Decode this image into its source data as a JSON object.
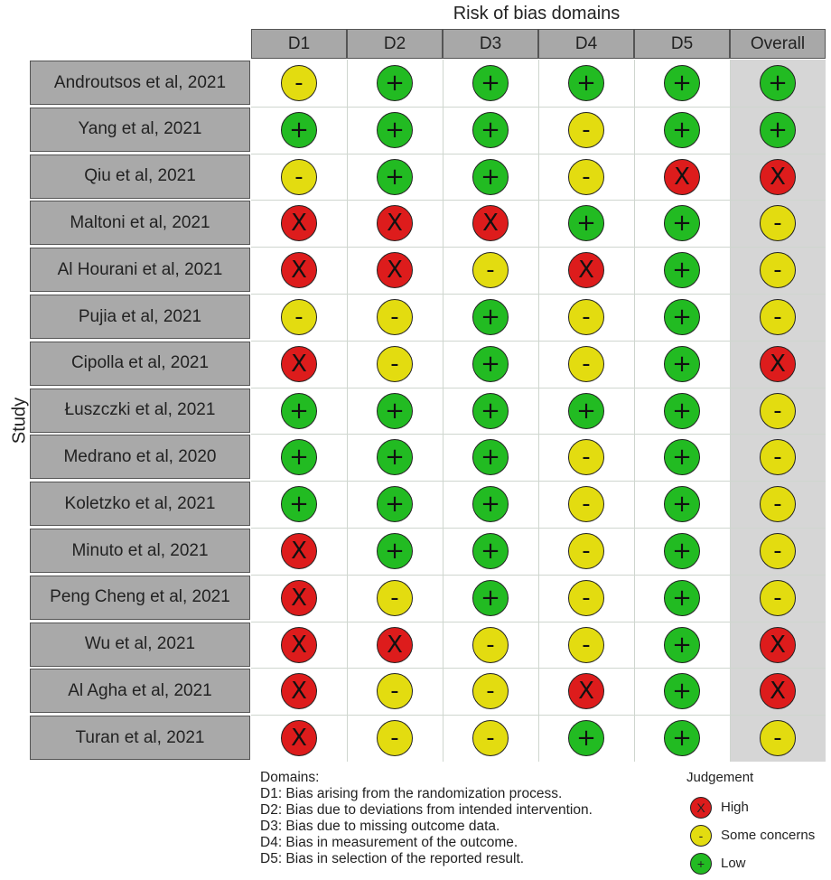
{
  "title": "Risk of bias domains",
  "y_axis_label": "Study",
  "columns": [
    "D1",
    "D2",
    "D3",
    "D4",
    "D5",
    "Overall"
  ],
  "symbols": {
    "low": "+",
    "some": "-",
    "high": "X"
  },
  "colors": {
    "low": "#22bb22",
    "some": "#e3dc10",
    "high": "#dd1c1c",
    "header": "#a8a8a8",
    "overall_bg": "#d6d6d6"
  },
  "studies": [
    {
      "name": "Androutsos et al, 2021",
      "ratings": [
        "some",
        "low",
        "low",
        "low",
        "low",
        "low"
      ]
    },
    {
      "name": "Yang et al, 2021",
      "ratings": [
        "low",
        "low",
        "low",
        "some",
        "low",
        "low"
      ]
    },
    {
      "name": "Qiu et al, 2021",
      "ratings": [
        "some",
        "low",
        "low",
        "some",
        "high",
        "high"
      ]
    },
    {
      "name": "Maltoni et al, 2021",
      "ratings": [
        "high",
        "high",
        "high",
        "low",
        "low",
        "some"
      ]
    },
    {
      "name": "Al Hourani et al, 2021",
      "ratings": [
        "high",
        "high",
        "some",
        "high",
        "low",
        "some"
      ]
    },
    {
      "name": "Pujia et al, 2021",
      "ratings": [
        "some",
        "some",
        "low",
        "some",
        "low",
        "some"
      ]
    },
    {
      "name": "Cipolla et al, 2021",
      "ratings": [
        "high",
        "some",
        "low",
        "some",
        "low",
        "high"
      ]
    },
    {
      "name": "Łuszczki et al, 2021",
      "ratings": [
        "low",
        "low",
        "low",
        "low",
        "low",
        "some"
      ]
    },
    {
      "name": "Medrano et al, 2020",
      "ratings": [
        "low",
        "low",
        "low",
        "some",
        "low",
        "some"
      ]
    },
    {
      "name": "Koletzko et al, 2021",
      "ratings": [
        "low",
        "low",
        "low",
        "some",
        "low",
        "some"
      ]
    },
    {
      "name": "Minuto et al, 2021",
      "ratings": [
        "high",
        "low",
        "low",
        "some",
        "low",
        "some"
      ]
    },
    {
      "name": "Peng Cheng et al, 2021",
      "ratings": [
        "high",
        "some",
        "low",
        "some",
        "low",
        "some"
      ]
    },
    {
      "name": "Wu et al, 2021",
      "ratings": [
        "high",
        "high",
        "some",
        "some",
        "low",
        "high"
      ]
    },
    {
      "name": "Al Agha et al, 2021",
      "ratings": [
        "high",
        "some",
        "some",
        "high",
        "low",
        "high"
      ]
    },
    {
      "name": "Turan et al, 2021",
      "ratings": [
        "high",
        "some",
        "some",
        "low",
        "low",
        "some"
      ]
    }
  ],
  "domains_title": "Domains:",
  "domains": [
    "D1: Bias arising from the randomization process.",
    "D2: Bias due to deviations from intended intervention.",
    "D3: Bias due to missing outcome data.",
    "D4: Bias in measurement of the outcome.",
    "D5: Bias in selection of the reported result."
  ],
  "legend_title": "Judgement",
  "legend": [
    {
      "key": "high",
      "label": "High"
    },
    {
      "key": "some",
      "label": "Some concerns"
    },
    {
      "key": "low",
      "label": "Low"
    }
  ]
}
